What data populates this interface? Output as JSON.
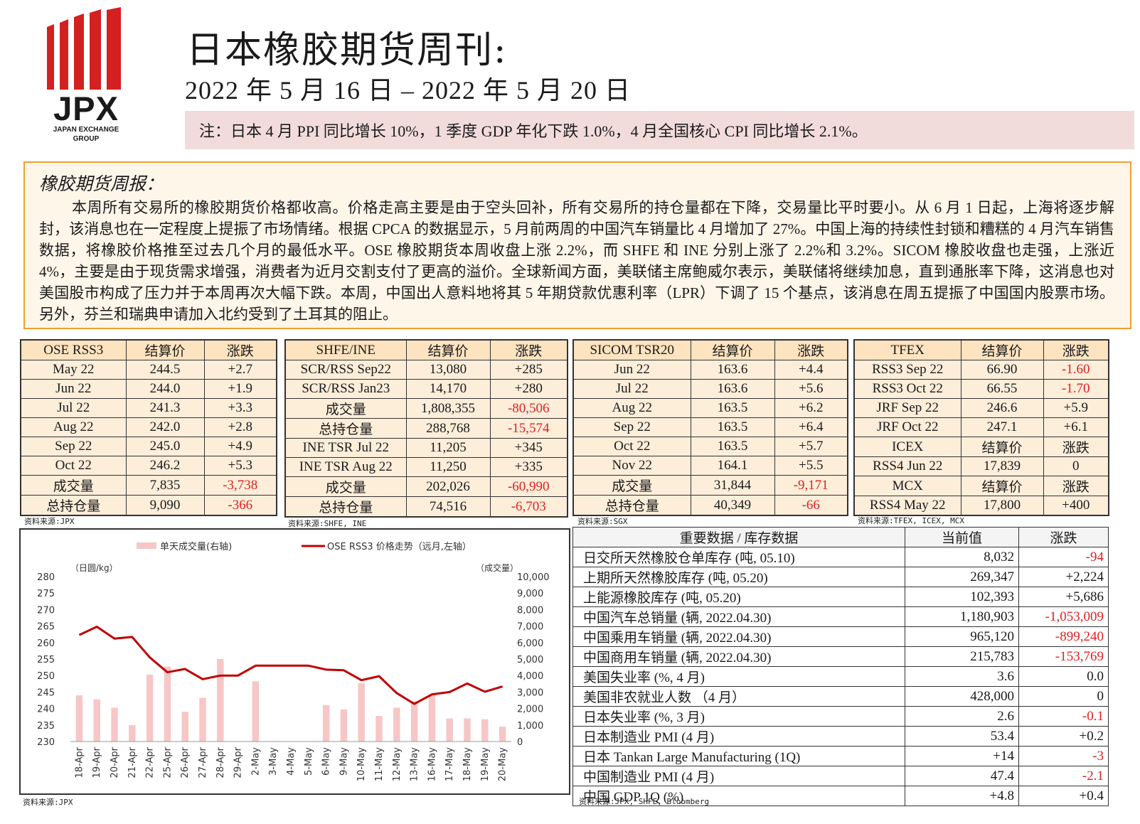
{
  "header": {
    "logo_text": "JPX",
    "logo_sub1": "JAPAN EXCHANGE",
    "logo_sub2": "GROUP",
    "title": "日本橡胶期货周刊:",
    "date_range": "2022 年 5 月 16 日 – 2022 年 5 月 20 日",
    "note": "注：日本 4 月 PPI 同比增长 10%，1 季度 GDP 年化下跌 1.0%，4 月全国核心 CPI 同比增长 2.1%。"
  },
  "weekly": {
    "title": "橡胶期货周报：",
    "body": "本周所有交易所的橡胶期货价格都收高。价格走高主要是由于空头回补，所有交易所的持仓量都在下降，交易量比平时要小。从 6 月 1 日起，上海将逐步解封，该消息也在一定程度上提振了市场情绪。根据 CPCA 的数据显示，5 月前两周的中国汽车销量比 4 月增加了 27%。中国上海的持续性封锁和糟糕的 4 月汽车销售数据，将橡胶价格推至过去几个月的最低水平。OSE 橡胶期货本周收盘上涨 2.2%，而 SHFE 和 INE 分别上涨了 2.2%和 3.2%。SICOM 橡胶收盘也走强，上涨近 4%，主要是由于现货需求增强，消费者为近月交割支付了更高的溢价。全球新闻方面，美联储主席鲍威尔表示，美联储将继续加息，直到通胀率下降，这消息也对美国股市构成了压力并于本周再次大幅下跌。本周，中国出人意料地将其 5 年期贷款优惠利率（LPR）下调了 15 个基点，该消息在周五提振了中国国内股票市场。另外，芬兰和瑞典申请加入北约受到了土耳其的阻止。"
  },
  "tables": {
    "ose": {
      "header": [
        "OSE RSS3",
        "结算价",
        "涨跌"
      ],
      "rows": [
        [
          "May 22",
          "244.5",
          "+2.7"
        ],
        [
          "Jun 22",
          "244.0",
          "+1.9"
        ],
        [
          "Jul 22",
          "241.3",
          "+3.3"
        ],
        [
          "Aug 22",
          "242.0",
          "+2.8"
        ],
        [
          "Sep 22",
          "245.0",
          "+4.9"
        ],
        [
          "Oct 22",
          "246.2",
          "+5.3"
        ],
        [
          "成交量",
          "7,835",
          "-3,738"
        ],
        [
          "总持仓量",
          "9,090",
          "-366"
        ]
      ],
      "source": "资料来源:JPX"
    },
    "shfe": {
      "header": [
        "SHFE/INE",
        "结算价",
        "涨跌"
      ],
      "rows": [
        [
          "SCR/RSS Sep22",
          "13,080",
          "+285"
        ],
        [
          "SCR/RSS Jan23",
          "14,170",
          "+280"
        ],
        [
          "成交量",
          "1,808,355",
          "-80,506"
        ],
        [
          "总持仓量",
          "288,768",
          "-15,574"
        ],
        [
          "INE TSR Jul 22",
          "11,205",
          "+345"
        ],
        [
          "INE TSR Aug 22",
          "11,250",
          "+335"
        ],
        [
          "成交量",
          "202,026",
          "-60,990"
        ],
        [
          "总持仓量",
          "74,516",
          "-6,703"
        ]
      ],
      "source": "资料来源:SHFE, INE"
    },
    "sicom": {
      "header": [
        "SICOM TSR20",
        "结算价",
        "涨跌"
      ],
      "rows": [
        [
          "Jun 22",
          "163.6",
          "+4.4"
        ],
        [
          "Jul 22",
          "163.6",
          "+5.6"
        ],
        [
          "Aug 22",
          "163.5",
          "+6.2"
        ],
        [
          "Sep 22",
          "163.5",
          "+6.4"
        ],
        [
          "Oct 22",
          "163.5",
          "+5.7"
        ],
        [
          "Nov 22",
          "164.1",
          "+5.5"
        ],
        [
          "成交量",
          "31,844",
          "-9,171"
        ],
        [
          "总持仓量",
          "40,349",
          "-66"
        ]
      ],
      "source": "资料来源:SGX"
    },
    "tfex": {
      "header": [
        "TFEX",
        "结算价",
        "涨跌"
      ],
      "rows": [
        [
          "RSS3 Sep 22",
          "66.90",
          "-1.60"
        ],
        [
          "RSS3 Oct 22",
          "66.55",
          "-1.70"
        ],
        [
          "JRF Sep 22",
          "246.6",
          "+5.9"
        ],
        [
          "JRF Oct 22",
          "247.1",
          "+6.1"
        ],
        [
          "ICEX",
          "结算价",
          "涨跌"
        ],
        [
          "RSS4 Jun 22",
          "17,839",
          "0"
        ],
        [
          "MCX",
          "结算价",
          "涨跌"
        ],
        [
          "RSS4 May 22",
          "17,800",
          "+400"
        ]
      ],
      "source": "资料来源:TFEX, ICEX, MCX"
    }
  },
  "data_table": {
    "header": [
      "重要数据 / 库存数据",
      "当前值",
      "涨跌"
    ],
    "rows": [
      [
        "日交所天然橡胶仓单库存 (吨, 05.10)",
        "8,032",
        "-94"
      ],
      [
        "上期所天然橡胶库存 (吨, 05.20)",
        "269,347",
        "+2,224"
      ],
      [
        "上能源橡胶库存 (吨, 05.20)",
        "102,393",
        "+5,686"
      ],
      [
        "中国汽车总销量 (辆, 2022.04.30)",
        "1,180,903",
        "-1,053,009"
      ],
      [
        "中国乘用车销量 (辆, 2022.04.30)",
        "965,120",
        "-899,240"
      ],
      [
        "中国商用车销量 (辆, 2022.04.30)",
        "215,783",
        "-153,769"
      ],
      [
        "美国失业率 (%, 4 月)",
        "3.6",
        "0.0"
      ],
      [
        "美国非农就业人数 （4 月）",
        "428,000",
        "0"
      ],
      [
        "日本失业率 (%, 3 月)",
        "2.6",
        "-0.1"
      ],
      [
        "日本制造业 PMI (4 月)",
        "53.4",
        "+0.2"
      ],
      [
        "日本 Tankan Large Manufacturing (1Q)",
        "+14",
        "-3"
      ],
      [
        "中国制造业 PMI (4 月)",
        "47.4",
        "-2.1"
      ],
      [
        "中国 GDP 1Q (%)",
        "+4.8",
        "+0.4"
      ]
    ],
    "source": "资料来源:JPX, SHFE, Bloomberg"
  },
  "chart_source": "资料来源:JPX",
  "colors": {
    "negative": "#e02020",
    "line": "#c00000",
    "bar": "#f7c6c6",
    "logo": "#d42020",
    "note_bg": "#f2dcdb",
    "box_border": "#f0a030"
  },
  "chart_data": {
    "type": "bar",
    "legend": [
      "单天成交量(右轴)",
      "OSE RSS3 价格走势（远月,左轴）"
    ],
    "ylabel_left": "（日圆/kg）",
    "ylabel_right": "（成交量）",
    "ylim_left": [
      230,
      280
    ],
    "ylim_right": [
      0,
      10000
    ],
    "yticks_left": [
      "280",
      "275",
      "270",
      "265",
      "260",
      "255",
      "250",
      "245",
      "240",
      "235",
      "230"
    ],
    "yticks_right": [
      "10,000",
      "9,000",
      "8,000",
      "7,000",
      "6,000",
      "5,000",
      "4,000",
      "3,000",
      "2,000",
      "1,000",
      "0"
    ],
    "categories": [
      "18-Apr",
      "19-Apr",
      "20-Apr",
      "21-Apr",
      "22-Apr",
      "25-Apr",
      "26-Apr",
      "27-Apr",
      "28-Apr",
      "29-Apr",
      "2-May",
      "3-May",
      "4-May",
      "5-May",
      "6-May",
      "9-May",
      "10-May",
      "11-May",
      "12-May",
      "13-May",
      "16-May",
      "17-May",
      "18-May",
      "19-May",
      "20-May"
    ],
    "series": [
      {
        "name": "单天成交量(右轴)",
        "axis": "right",
        "type": "bar",
        "values": [
          2800,
          2550,
          2050,
          1000,
          4050,
          4550,
          1800,
          2650,
          5000,
          null,
          3650,
          null,
          null,
          null,
          2200,
          1950,
          3550,
          1550,
          2050,
          2450,
          2850,
          1400,
          1400,
          1350,
          900
        ]
      },
      {
        "name": "OSE RSS3 价格走势（远月,左轴）",
        "axis": "left",
        "type": "line",
        "values": [
          262.3,
          264.8,
          261.2,
          261.7,
          255.5,
          251.0,
          252.0,
          248.9,
          250.0,
          250.0,
          253.0,
          253.0,
          253.0,
          253.0,
          251.8,
          251.6,
          248.6,
          249.8,
          244.7,
          241.4,
          244.3,
          245.0,
          247.6,
          245.1,
          246.7
        ]
      }
    ]
  }
}
